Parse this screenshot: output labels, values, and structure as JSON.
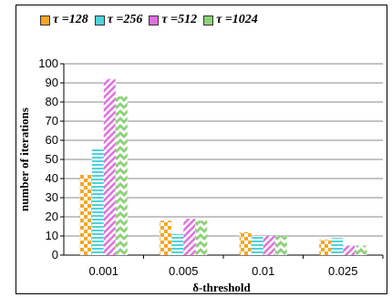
{
  "chart_data": {
    "type": "bar",
    "title": "",
    "xlabel": "δ-threshold",
    "ylabel": "number of iterations",
    "categories": [
      "0.001",
      "0.005",
      "0.01",
      "0.025"
    ],
    "ylim": [
      0,
      100
    ],
    "yticks": [
      0,
      10,
      20,
      30,
      40,
      50,
      60,
      70,
      80,
      90,
      100
    ],
    "grid": "horizontal",
    "legend_position": "top",
    "series": [
      {
        "name": "τ =128",
        "values": [
          42,
          18,
          12,
          8
        ],
        "color": "#f5a623",
        "pattern": "checker"
      },
      {
        "name": "τ =256",
        "values": [
          56,
          11,
          10,
          9
        ],
        "color": "#4fd3dc",
        "pattern": "hstripes"
      },
      {
        "name": "τ =512",
        "values": [
          92,
          19,
          10,
          5
        ],
        "color": "#e070e0",
        "pattern": "diagonal"
      },
      {
        "name": "τ =1024",
        "values": [
          83,
          18,
          10,
          5
        ],
        "color": "#8ed07a",
        "pattern": "zigzag"
      }
    ]
  }
}
